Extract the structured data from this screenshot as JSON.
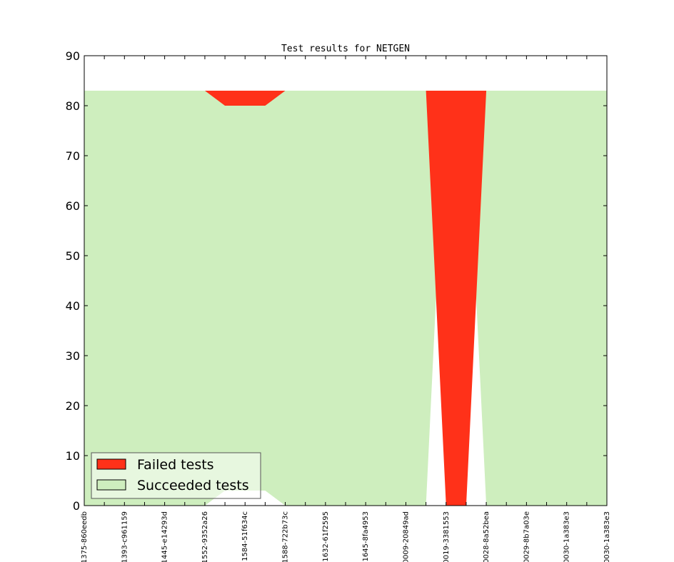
{
  "chart_data": {
    "type": "area",
    "title": "Test results for NETGEN",
    "xlabel": "",
    "ylabel": "",
    "ylim": [
      0,
      90
    ],
    "yticks": [
      0,
      10,
      20,
      30,
      40,
      50,
      60,
      70,
      80,
      90
    ],
    "grid": false,
    "legend_position": "lower-left",
    "categories": [
      "1375-860eedb",
      "",
      "1393-c961159",
      "",
      "1445-e14293d",
      "",
      "1552-9352a26",
      "",
      "1584-51f634c",
      "",
      "1588-722b73c",
      "",
      "1632-61f2595",
      "",
      "1645-8fa4953",
      "",
      "0009-20849ad",
      "",
      "0019-3381553",
      "",
      "0028-8a52bea",
      "",
      "0029-8b7a03e",
      "",
      "0030-1a383e3",
      "",
      "0030-1a383e3"
    ],
    "series": [
      {
        "name": "Failed tests",
        "color": "#ff3119",
        "values": [
          0,
          0,
          0,
          0,
          0,
          0,
          0,
          3,
          3,
          3,
          0,
          0,
          0,
          0,
          0,
          0,
          0,
          0,
          83,
          83,
          0,
          0,
          0,
          0,
          0,
          0,
          0
        ]
      },
      {
        "name": "Succeeded tests",
        "color": "#ceeebe",
        "values": [
          83,
          83,
          83,
          83,
          83,
          83,
          83,
          80,
          80,
          80,
          83,
          83,
          83,
          83,
          83,
          83,
          83,
          83,
          0,
          0,
          83,
          83,
          83,
          83,
          83,
          83,
          83
        ]
      }
    ]
  }
}
